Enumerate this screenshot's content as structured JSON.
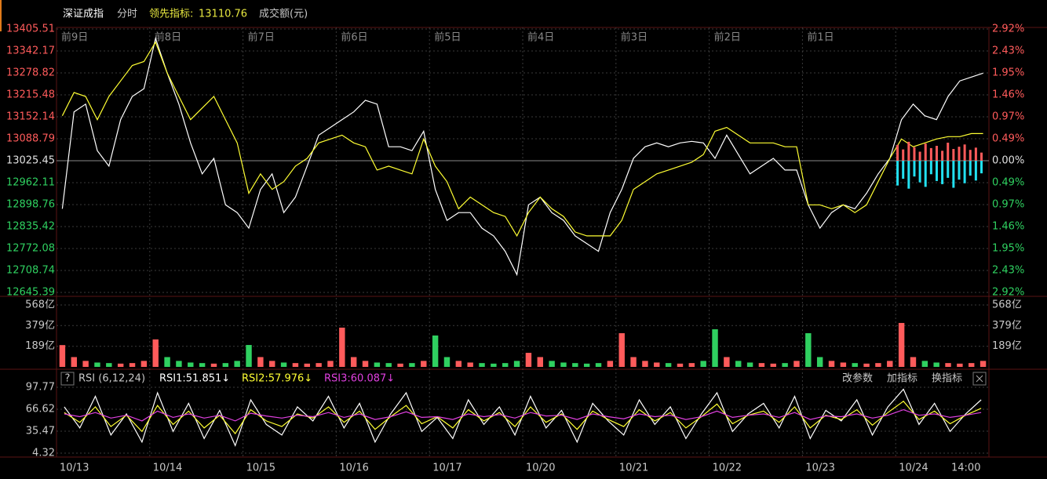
{
  "header": {
    "name": "深证成指",
    "mode": "分时",
    "indicator_label": "领先指标:",
    "indicator_value": 13110.76,
    "volume_label": "成交额(元)"
  },
  "day_labels": [
    "前9日",
    "前8日",
    "前7日",
    "前6日",
    "前5日",
    "前4日",
    "前3日",
    "前2日",
    "前1日"
  ],
  "dates": [
    "10/13",
    "10/14",
    "10/15",
    "10/16",
    "10/17",
    "10/20",
    "10/21",
    "10/22",
    "10/23",
    "10/24"
  ],
  "time_label": "14:00",
  "toolbar": {
    "help": "?",
    "buttons": [
      "改参数",
      "加指标",
      "换指标"
    ]
  },
  "chart_data": [
    {
      "type": "line",
      "up_color": "#ff5b5b",
      "down_color": "#2fd060",
      "xlim": [
        0,
        10
      ],
      "ylim": [
        12645.39,
        13405.51
      ],
      "yticks": [
        13405.51,
        13342.17,
        13278.82,
        13215.48,
        13152.14,
        13088.79,
        13025.45,
        12962.11,
        12898.76,
        12835.42,
        12772.08,
        12708.74,
        12645.39
      ],
      "y2lim": [
        -2.92,
        2.92
      ],
      "y2ticks": [
        {
          "value": 2.92,
          "label": "2.92%"
        },
        {
          "value": 2.43,
          "label": "2.43%"
        },
        {
          "value": 1.95,
          "label": "1.95%"
        },
        {
          "value": 1.46,
          "label": "1.46%"
        },
        {
          "value": 0.97,
          "label": "0.97%"
        },
        {
          "value": 0.49,
          "label": "0.49%"
        },
        {
          "value": 0,
          "label": "0.00%"
        },
        {
          "value": -0.49,
          "label": "0.49%"
        },
        {
          "value": -0.97,
          "label": "0.97%"
        },
        {
          "value": -1.46,
          "label": "1.46%"
        },
        {
          "value": -1.95,
          "label": "1.95%"
        },
        {
          "value": -2.43,
          "label": "2.43%"
        },
        {
          "value": -2.92,
          "label": "2.92%"
        }
      ],
      "grid": true,
      "series": [
        {
          "color": "#ffffff",
          "values": [
            12886.8,
            13166.3,
            13188.7,
            13054.5,
            13009.8,
            13143.9,
            13211.0,
            13233.4,
            13378.7,
            13278.1,
            13188.7,
            13076.9,
            12987.4,
            13032.2,
            12898.0,
            12875.7,
            12831.0,
            12942.7,
            12987.4,
            12875.7,
            12920.4,
            13009.8,
            13099.2,
            13121.6,
            13143.9,
            13166.3,
            13199.8,
            13188.7,
            13065.7,
            13065.7,
            13054.5,
            13110.4,
            12942.7,
            12853.3,
            12875.7,
            12875.7,
            12831.0,
            12808.6,
            12763.9,
            12696.8,
            12898.0,
            12920.4,
            12875.7,
            12853.3,
            12808.6,
            12786.2,
            12763.9,
            12875.7,
            12942.7,
            13032.2,
            13065.7,
            13076.9,
            13065.7,
            13076.9,
            13081.4,
            13076.9,
            13032.2,
            13099.2,
            13043.3,
            12987.4,
            13009.8,
            13032.2,
            12998.6,
            12998.6,
            12898.0,
            12831.0,
            12875.7,
            12898.0,
            12886.8,
            12931.6,
            12987.4,
            13032.2,
            13143.9,
            13188.7,
            13155.1,
            13143.9,
            13211.0,
            13255.7,
            13266.9,
            13278.1
          ]
        },
        {
          "color": "#ffff33",
          "values": [
            13155.1,
            13222.2,
            13211.0,
            13143.9,
            13211.0,
            13255.7,
            13300.4,
            13311.6,
            13367.5,
            13278.1,
            13211.0,
            13143.9,
            13177.5,
            13211.0,
            13143.9,
            13076.9,
            12931.6,
            12987.4,
            12942.7,
            12965.1,
            13009.8,
            13032.2,
            13076.9,
            13088.1,
            13099.2,
            13076.9,
            13065.7,
            12998.6,
            13009.8,
            12998.6,
            12987.4,
            13088.1,
            13009.8,
            12965.1,
            12886.8,
            12920.4,
            12898.0,
            12875.7,
            12864.5,
            12808.6,
            12875.7,
            12920.4,
            12886.8,
            12864.5,
            12819.8,
            12808.6,
            12808.6,
            12808.6,
            12853.3,
            12942.7,
            12965.1,
            12987.4,
            12998.6,
            13009.8,
            13021.0,
            13043.3,
            13110.4,
            13121.6,
            13099.2,
            13076.9,
            13076.9,
            13076.9,
            13065.7,
            13065.7,
            12898.0,
            12898.0,
            12886.8,
            12898.0,
            12875.7,
            12898.0,
            12965.1,
            13032.2,
            13088.1,
            13065.7,
            13076.9,
            13088.1,
            13094.8,
            13094.8,
            13103.7,
            13103.7
          ]
        },
        {
          "color": "#ff5b5b",
          "axis": "y2",
          "style": "bars",
          "x": [
            9.02,
            9.08,
            9.14,
            9.2,
            9.26,
            9.32,
            9.38,
            9.44,
            9.5,
            9.56,
            9.62,
            9.68,
            9.74,
            9.8,
            9.86,
            9.92
          ],
          "values": [
            0.35,
            0.25,
            0.42,
            0.3,
            0.2,
            0.38,
            0.28,
            0.33,
            0.22,
            0.4,
            0.26,
            0.31,
            0.36,
            0.24,
            0.29,
            0.18
          ]
        },
        {
          "color": "#22e0f0",
          "axis": "y2",
          "style": "bars",
          "x": [
            9.02,
            9.08,
            9.14,
            9.2,
            9.26,
            9.32,
            9.38,
            9.44,
            9.5,
            9.56,
            9.62,
            9.68,
            9.74,
            9.8,
            9.86,
            9.92
          ],
          "values": [
            -0.55,
            -0.4,
            -0.62,
            -0.35,
            -0.48,
            -0.58,
            -0.3,
            -0.45,
            -0.52,
            -0.38,
            -0.6,
            -0.42,
            -0.5,
            -0.33,
            -0.44,
            -0.28
          ]
        }
      ]
    },
    {
      "type": "bar",
      "up_color": "#ff5b5b",
      "down_color": "#2fd060",
      "xlim": [
        0,
        10
      ],
      "ylim": [
        0,
        568
      ],
      "yticks": [
        {
          "value": 568,
          "label": "568亿"
        },
        {
          "value": 379,
          "label": "379亿"
        },
        {
          "value": 189,
          "label": "189亿"
        }
      ],
      "values": [
        200,
        90,
        55,
        40,
        35,
        30,
        35,
        55,
        252,
        90,
        55,
        40,
        35,
        30,
        35,
        55,
        201,
        90,
        55,
        40,
        35,
        30,
        35,
        55,
        360,
        90,
        55,
        40,
        35,
        30,
        35,
        55,
        288,
        90,
        55,
        40,
        35,
        30,
        35,
        55,
        129,
        90,
        55,
        40,
        35,
        30,
        35,
        55,
        309,
        90,
        55,
        40,
        35,
        30,
        35,
        55,
        345,
        90,
        55,
        40,
        35,
        30,
        35,
        55,
        309,
        90,
        55,
        40,
        35,
        30,
        35,
        55,
        403,
        90,
        55,
        40,
        35,
        30,
        35,
        55
      ]
    },
    {
      "type": "line",
      "title": "RSI (6,12,24)",
      "xlim": [
        0,
        10
      ],
      "ylim": [
        4.32,
        97.77
      ],
      "yticks": [
        97.77,
        66.62,
        35.47,
        4.32
      ],
      "series": [
        {
          "name": "RSI1:51.851↓",
          "color": "#ffffff",
          "values": [
            70,
            40,
            85,
            30,
            60,
            20,
            90,
            35,
            75,
            25,
            65,
            15,
            80,
            45,
            30,
            70,
            50,
            85,
            40,
            75,
            20,
            60,
            90,
            35,
            55,
            25,
            80,
            45,
            70,
            30,
            85,
            40,
            65,
            20,
            75,
            50,
            30,
            80,
            45,
            70,
            25,
            60,
            90,
            35,
            60,
            75,
            40,
            85,
            25,
            65,
            50,
            80,
            30,
            70,
            95,
            45,
            75,
            35,
            60,
            80
          ]
        },
        {
          "name": "RSI2:57.976↓",
          "color": "#ffff33",
          "values": [
            62,
            48,
            70,
            42,
            58,
            35,
            72,
            45,
            64,
            40,
            58,
            32,
            66,
            50,
            42,
            60,
            54,
            70,
            48,
            64,
            38,
            56,
            72,
            46,
            56,
            40,
            66,
            50,
            62,
            42,
            70,
            48,
            60,
            38,
            64,
            52,
            42,
            66,
            50,
            62,
            40,
            56,
            74,
            46,
            58,
            64,
            48,
            70,
            40,
            58,
            52,
            66,
            44,
            62,
            78,
            52,
            64,
            46,
            58,
            68
          ]
        },
        {
          "name": "RSI3:60.087↓",
          "color": "#e040e0",
          "values": [
            60,
            56,
            62,
            54,
            58,
            50,
            64,
            55,
            60,
            54,
            58,
            50,
            61,
            57,
            54,
            58,
            56,
            62,
            55,
            60,
            52,
            56,
            63,
            55,
            56,
            52,
            60,
            56,
            59,
            54,
            62,
            57,
            58,
            52,
            60,
            56,
            53,
            60,
            56,
            58,
            52,
            56,
            64,
            55,
            58,
            60,
            55,
            62,
            52,
            57,
            56,
            60,
            54,
            58,
            66,
            58,
            60,
            55,
            58,
            62
          ]
        }
      ]
    }
  ]
}
